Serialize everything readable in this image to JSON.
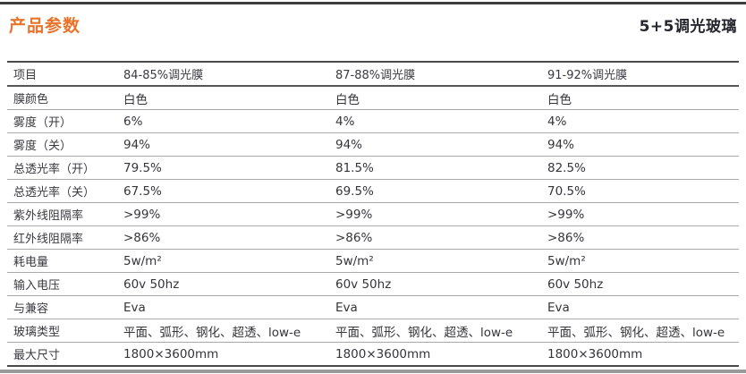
{
  "page": {
    "title": "产品参数",
    "subtitle": "5+5调光玻璃",
    "accent_color": "#E8732A",
    "subtitle_color": "#26262E",
    "rule_color": "#3D3D3D"
  },
  "table": {
    "header": [
      "项目",
      "84-85%调光膜",
      "87-88%调光膜",
      "91-92%调光膜"
    ],
    "rows": [
      {
        "label": "膜颜色",
        "values": [
          "白色",
          "白色",
          "白色"
        ]
      },
      {
        "label": "雾度（开）",
        "values": [
          "6%",
          "4%",
          "4%"
        ]
      },
      {
        "label": "雾度（关）",
        "values": [
          "94%",
          "94%",
          "94%"
        ]
      },
      {
        "label": "总透光率（开）",
        "values": [
          "79.5%",
          "81.5%",
          "82.5%"
        ]
      },
      {
        "label": "总透光率（关）",
        "values": [
          "67.5%",
          "69.5%",
          "70.5%"
        ]
      },
      {
        "label": "紫外线阻隔率",
        "values": [
          ">99%",
          ">99%",
          ">99%"
        ]
      },
      {
        "label": "红外线阻隔率",
        "values": [
          ">86%",
          ">86%",
          ">86%"
        ]
      },
      {
        "label": "耗电量",
        "values": [
          "5w/m²",
          "5w/m²",
          "5w/m²"
        ]
      },
      {
        "label": "输入电压",
        "values": [
          "60v 50hz",
          "60v 50hz",
          "60v 50hz"
        ]
      },
      {
        "label": "与兼容",
        "values": [
          "Eva",
          "Eva",
          "Eva"
        ]
      },
      {
        "label": "玻璃类型",
        "values": [
          "平面、弧形、钢化、超透、low-e",
          "平面、弧形、钢化、超透、low-e",
          "平面、弧形、钢化、超透、low-e"
        ]
      },
      {
        "label": "最大尺寸",
        "values": [
          "1800×3600mm",
          "1800×3600mm",
          "1800×3600mm"
        ]
      }
    ]
  }
}
